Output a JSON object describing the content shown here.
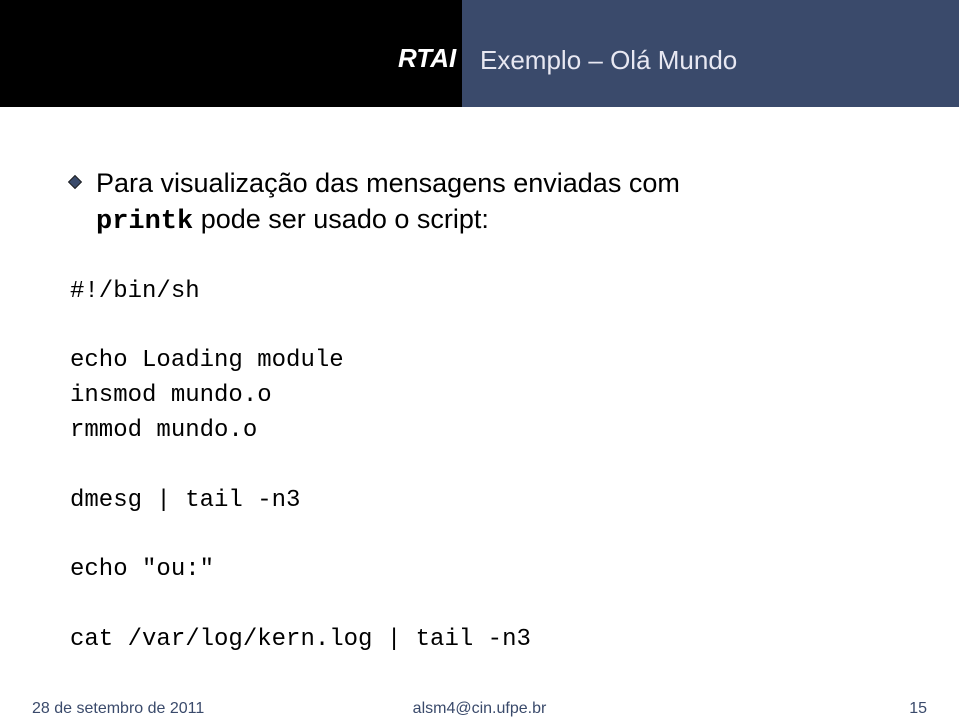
{
  "header": {
    "left_bg": "#000000",
    "right_bg": "#3a4a6b",
    "rtai": "RTAI",
    "subtitle": "Exemplo – Olá Mundo"
  },
  "body": {
    "line1_prefix": "Para visualização das mensagens enviadas com",
    "line2_tt": "printk",
    "line2_rest": " pode ser usado o script:"
  },
  "code": {
    "l1": "#!/bin/sh",
    "l2": "",
    "l3": "echo Loading module",
    "l4": "insmod mundo.o",
    "l5": "rmmod mundo.o",
    "l6": "",
    "l7": "dmesg | tail -n3",
    "l8": "",
    "l9": "echo \"ou:\"",
    "l10": "",
    "l11": "cat /var/log/kern.log | tail -n3"
  },
  "footer": {
    "date": "28 de setembro de 2011",
    "email": "alsm4@cin.ufpe.br",
    "page": "15"
  }
}
